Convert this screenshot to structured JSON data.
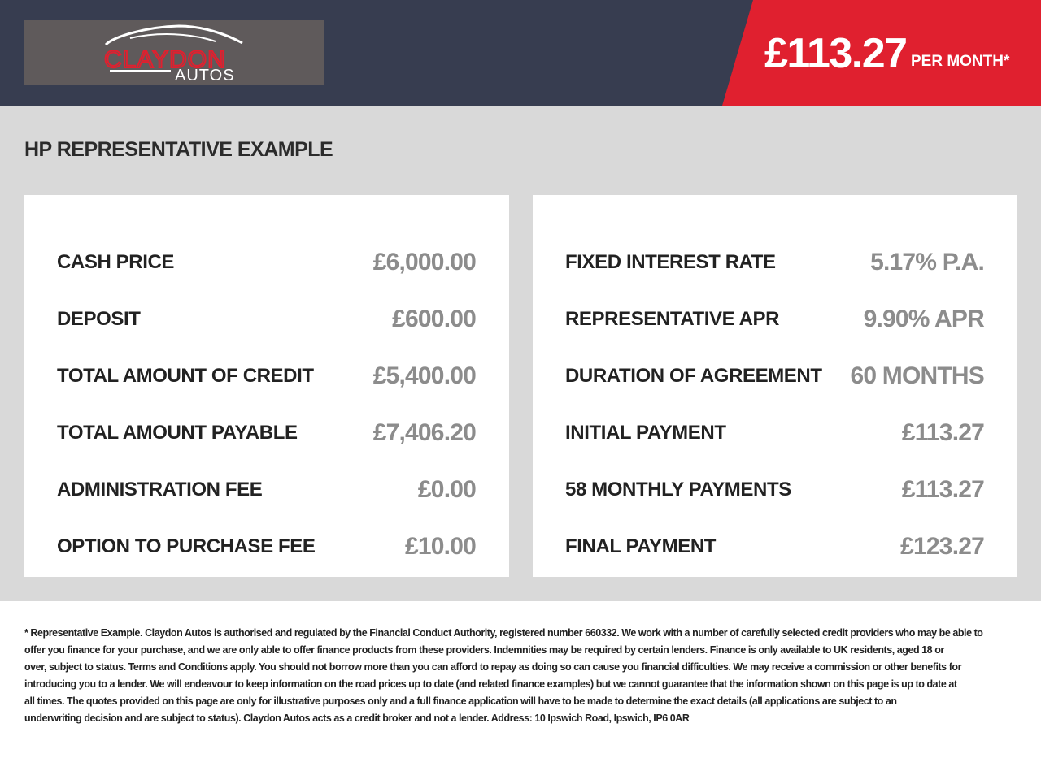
{
  "header": {
    "logo_text": "CLAYDON AUTOS",
    "logo_word1": "CLAYDON",
    "logo_word2": "AUTOS",
    "monthly_price": "£113.27",
    "per_month_label": "PER MONTH*",
    "colors": {
      "header_bg": "#373d50",
      "accent": "#e0202f"
    }
  },
  "main": {
    "title": "HP REPRESENTATIVE EXAMPLE",
    "left_card": [
      {
        "label": "CASH PRICE",
        "value": "£6,000.00"
      },
      {
        "label": "DEPOSIT",
        "value": "£600.00"
      },
      {
        "label": "TOTAL AMOUNT OF CREDIT",
        "value": "£5,400.00"
      },
      {
        "label": "TOTAL AMOUNT PAYABLE",
        "value": "£7,406.20"
      },
      {
        "label": "ADMINISTRATION FEE",
        "value": "£0.00"
      },
      {
        "label": "OPTION TO PURCHASE FEE",
        "value": "£10.00"
      }
    ],
    "right_card": [
      {
        "label": "FIXED INTEREST RATE",
        "value": "5.17% P.A."
      },
      {
        "label": "REPRESENTATIVE APR",
        "value": "9.90% APR"
      },
      {
        "label": "DURATION OF AGREEMENT",
        "value": "60 MONTHS"
      },
      {
        "label": "INITIAL PAYMENT",
        "value": "£113.27"
      },
      {
        "label": "58 MONTHLY PAYMENTS",
        "value": "£113.27"
      },
      {
        "label": "FINAL PAYMENT",
        "value": "£123.27"
      }
    ]
  },
  "footer": {
    "lines": [
      "* Representative Example. Claydon Autos is authorised and regulated by the Financial Conduct Authority, registered number 660332. We work with a number of carefully selected credit providers who may be able to",
      "offer you finance for your purchase, and we are only able to offer finance products from these providers. Indemnities may be required by certain lenders. Finance is only available to UK residents, aged 18 or",
      "over, subject to status. Terms and Conditions apply. You should not borrow more than you can afford to repay as doing so can cause you financial difficulties. We may receive a commission or other benefits for",
      "introducing you to a lender. We will endeavour to keep information on the road prices up to date (and related finance examples) but we cannot guarantee that the information shown on this page is up to date at",
      "all times. The quotes provided on this page are only for illustrative purposes only and a full finance application will have to be made to determine the exact details (all applications are subject to an",
      "underwriting decision and are subject to status). Claydon Autos acts as a credit broker and not a lender. Address: 10 Ipswich Road, Ipswich, IP6 0AR"
    ]
  }
}
